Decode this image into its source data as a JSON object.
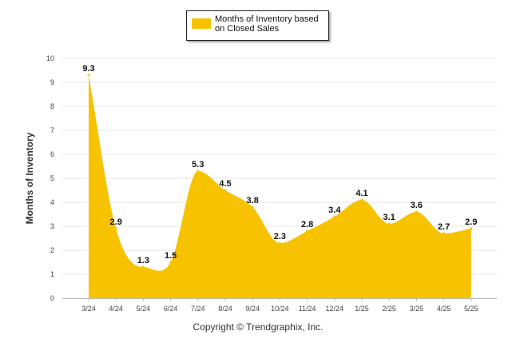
{
  "chart_data": {
    "type": "area",
    "legend": {
      "label": "Months of Inventory based on Closed Sales",
      "position": "top-center"
    },
    "ylabel": "Months of Inventory",
    "xlabel": "",
    "ylim": [
      0,
      10
    ],
    "yticks": [
      "0",
      "1",
      "2",
      "3",
      "4",
      "5",
      "6",
      "7",
      "8",
      "9",
      "10"
    ],
    "grid": true,
    "color": "#F7C200",
    "categories": [
      "3/24",
      "4/24",
      "5/24",
      "6/24",
      "7/24",
      "8/24",
      "9/24",
      "10/24",
      "11/24",
      "12/24",
      "1/25",
      "2/25",
      "3/25",
      "4/25",
      "5/25"
    ],
    "values": [
      9.3,
      2.9,
      1.3,
      1.5,
      5.3,
      4.5,
      3.8,
      2.3,
      2.8,
      3.4,
      4.1,
      3.1,
      3.6,
      2.7,
      2.9
    ],
    "data_labels": [
      "9.3",
      "2.9",
      "1.3",
      "1.5",
      "5.3",
      "4.5",
      "3.8",
      "2.3",
      "2.8",
      "3.4",
      "4.1",
      "3.1",
      "3.6",
      "2.7",
      "2.9"
    ]
  },
  "footer": {
    "copyright": "Copyright © Trendgraphix, Inc."
  }
}
